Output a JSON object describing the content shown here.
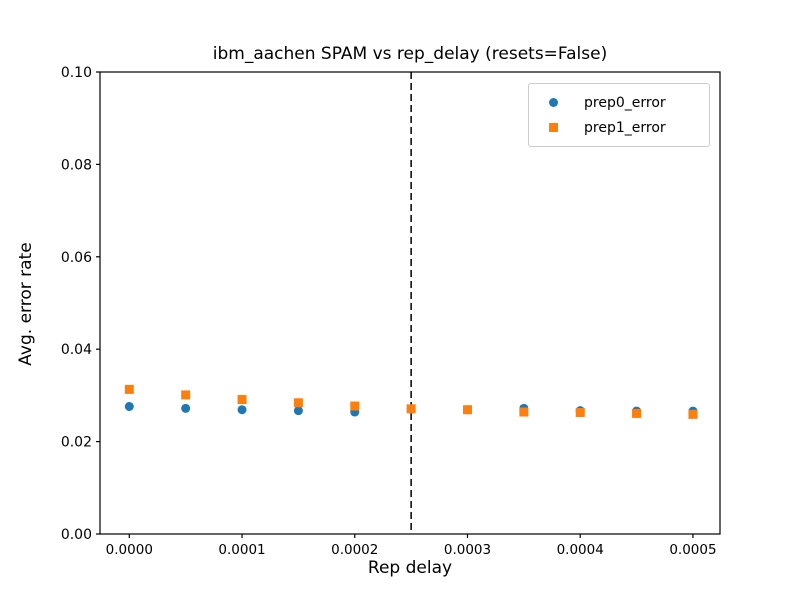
{
  "chart_data": {
    "type": "scatter",
    "title": "ibm_aachen SPAM vs rep_delay (resets=False)",
    "xlabel": "Rep delay",
    "ylabel": "Avg. error rate",
    "xlim": [
      -2.6e-05,
      0.000524
    ],
    "ylim": [
      0.0,
      0.1
    ],
    "x_ticks": [
      0.0,
      0.0001,
      0.0002,
      0.0003,
      0.0004,
      0.0005
    ],
    "x_tick_labels": [
      "0.0000",
      "0.0001",
      "0.0002",
      "0.0003",
      "0.0004",
      "0.0005"
    ],
    "y_ticks": [
      0.0,
      0.02,
      0.04,
      0.06,
      0.08,
      0.1
    ],
    "y_tick_labels": [
      "0.00",
      "0.02",
      "0.04",
      "0.06",
      "0.08",
      "0.10"
    ],
    "grid": false,
    "legend_position": "upper right",
    "x": [
      0.0,
      5e-05,
      0.0001,
      0.00015,
      0.0002,
      0.00025,
      0.0003,
      0.00035,
      0.0004,
      0.00045,
      0.0005
    ],
    "series": [
      {
        "name": "prep0_error",
        "marker": "circle",
        "color": "#1f77b4",
        "values": [
          0.0276,
          0.0272,
          0.0269,
          0.0267,
          0.0264,
          0.027,
          0.0269,
          0.0272,
          0.0267,
          0.0266,
          0.0266
        ]
      },
      {
        "name": "prep1_error",
        "marker": "square",
        "color": "#ff7f0e",
        "values": [
          0.0313,
          0.0301,
          0.0291,
          0.0284,
          0.0277,
          0.0271,
          0.0269,
          0.0264,
          0.0263,
          0.0261,
          0.0259
        ]
      }
    ],
    "vline": {
      "x": 0.00025,
      "style": "dashed",
      "color": "#000000"
    }
  }
}
